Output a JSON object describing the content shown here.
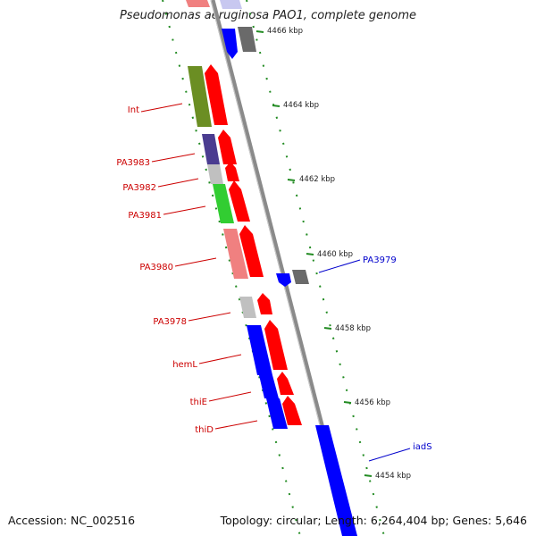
{
  "title": "Pseudomonas aeruginosa PAO1, complete genome",
  "footer": {
    "accession": "Accession: NC_002516",
    "summary": "Topology: circular; Length: 6,264,404 bp; Genes: 5,646"
  },
  "colors": {
    "backbone": "#8a8a8a",
    "forward_feature": "#ff0000",
    "left_label": "#cc0000",
    "right_label": "#0000cc",
    "tick": "#228b22",
    "tick_label": "#222222"
  },
  "scale_ticks": [
    "4466 kbp",
    "4464 kbp",
    "4462 kbp",
    "4460 kbp",
    "4458 kbp",
    "4456 kbp",
    "4454 kbp"
  ],
  "left_labels": [
    "Int",
    "PA3983",
    "PA3982",
    "PA3981",
    "PA3980",
    "PA3978",
    "hemL",
    "thiE",
    "thiD"
  ],
  "right_labels": [
    "PA3979",
    "iadS"
  ]
}
